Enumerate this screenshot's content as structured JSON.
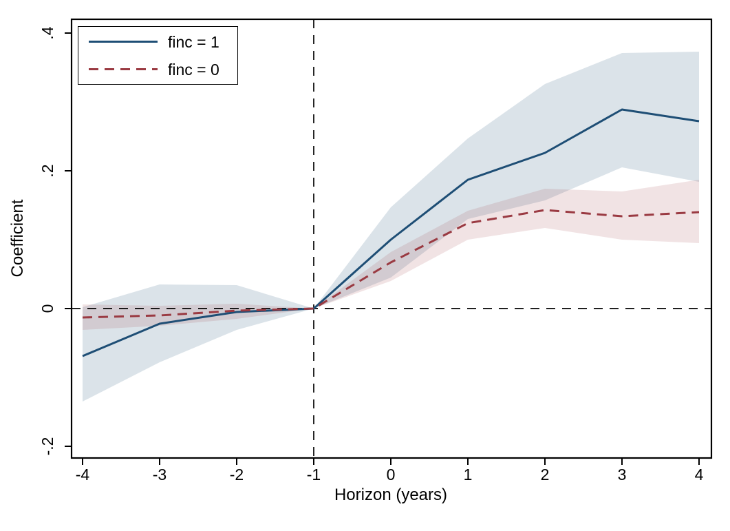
{
  "chart_data": {
    "type": "line",
    "title": "",
    "xlabel": "Horizon (years)",
    "ylabel": "Coefficient",
    "grid": false,
    "legend_position": "top-left",
    "xlim": [
      -4.14,
      4.16
    ],
    "ylim": [
      -0.217,
      0.42
    ],
    "x": [
      -4,
      -3,
      -2,
      -1,
      0,
      1,
      2,
      3,
      4
    ],
    "x_ticks": [
      {
        "label": "-4",
        "value": -4
      },
      {
        "label": "-3",
        "value": -3
      },
      {
        "label": "-2",
        "value": -2
      },
      {
        "label": "-1",
        "value": -1
      },
      {
        "label": "0",
        "value": 0
      },
      {
        "label": "1",
        "value": 1
      },
      {
        "label": "2",
        "value": 2
      },
      {
        "label": "3",
        "value": 3
      },
      {
        "label": "4",
        "value": 4
      }
    ],
    "y_ticks": [
      {
        "label": ".4",
        "value": 0.4
      },
      {
        "label": ".2",
        "value": 0.2
      },
      {
        "label": "0",
        "value": 0
      },
      {
        "label": "-.2",
        "value": -0.2
      }
    ],
    "reference_lines": {
      "vertical_x": -1,
      "horizontal_y": 0
    },
    "colors": {
      "reference": "#000000",
      "frame": "#000000",
      "background": "#ffffff"
    },
    "series": [
      {
        "id": "finc1",
        "name": "finc = 1",
        "style": "solid",
        "color": "#1e4e75",
        "band_color": "#1e4e75",
        "band_opacity": 0.16,
        "values": [
          -0.069,
          -0.022,
          -0.005,
          0,
          0.1,
          0.187,
          0.226,
          0.289,
          0.272
        ],
        "ci_lower": [
          -0.135,
          -0.078,
          -0.031,
          0,
          0.045,
          0.13,
          0.157,
          0.205,
          0.184
        ],
        "ci_upper": [
          0.002,
          0.035,
          0.034,
          0,
          0.147,
          0.247,
          0.326,
          0.371,
          0.373
        ]
      },
      {
        "id": "finc0",
        "name": "finc = 0",
        "style": "dashed",
        "color": "#9a3a42",
        "band_color": "#9a3a42",
        "band_opacity": 0.14,
        "values": [
          -0.013,
          -0.01,
          -0.003,
          0,
          0.067,
          0.124,
          0.143,
          0.134,
          0.14
        ],
        "ci_lower": [
          -0.031,
          -0.025,
          -0.015,
          0,
          0.04,
          0.1,
          0.117,
          0.1,
          0.095
        ],
        "ci_upper": [
          0.006,
          0.004,
          0.007,
          0,
          0.082,
          0.142,
          0.174,
          0.17,
          0.187
        ]
      }
    ]
  }
}
